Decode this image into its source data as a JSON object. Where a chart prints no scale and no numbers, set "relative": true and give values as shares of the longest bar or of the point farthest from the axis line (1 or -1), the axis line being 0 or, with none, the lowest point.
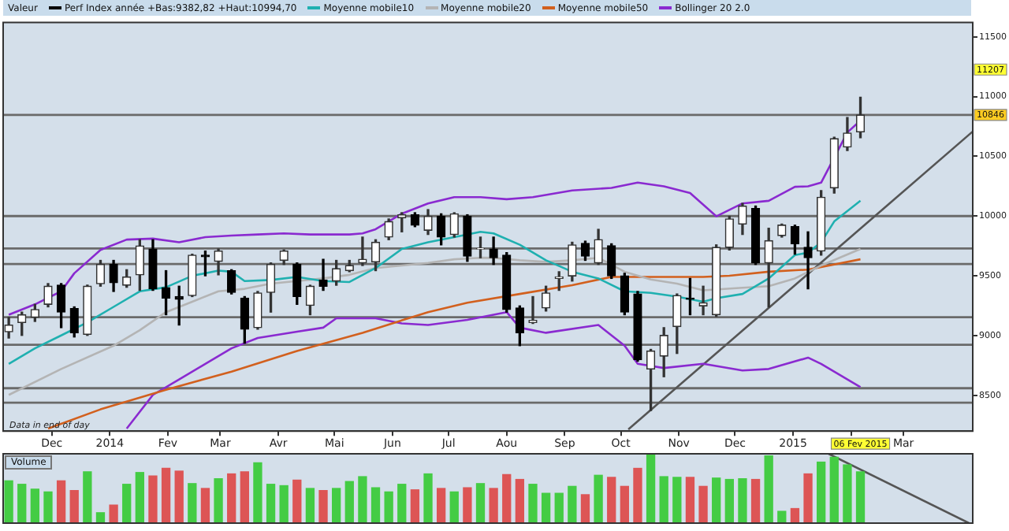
{
  "chart_data": [
    {
      "type": "candlestick",
      "legend_title": "Valeur",
      "legend": "top left",
      "marker": "none",
      "grid": false,
      "x": [
        "2013-11-08",
        "2013-11-15",
        "2013-11-22",
        "2013-11-29",
        "2013-12-06",
        "2013-12-13",
        "2013-12-20",
        "2013-12-27",
        "2014-01-03",
        "2014-01-10",
        "2014-01-17",
        "2014-01-24",
        "2014-01-31",
        "2014-02-07",
        "2014-02-14",
        "2014-02-21",
        "2014-02-28",
        "2014-03-07",
        "2014-03-14",
        "2014-03-21",
        "2014-03-28",
        "2014-04-04",
        "2014-04-11",
        "2014-04-18",
        "2014-04-25",
        "2014-05-02",
        "2014-05-09",
        "2014-05-16",
        "2014-05-23",
        "2014-05-30",
        "2014-06-06",
        "2014-06-13",
        "2014-06-20",
        "2014-06-27",
        "2014-07-04",
        "2014-07-11",
        "2014-07-18",
        "2014-07-25",
        "2014-08-01",
        "2014-08-08",
        "2014-08-15",
        "2014-08-22",
        "2014-08-29",
        "2014-09-05",
        "2014-09-12",
        "2014-09-19",
        "2014-09-26",
        "2014-10-03",
        "2014-10-10",
        "2014-10-17",
        "2014-10-24",
        "2014-10-31",
        "2014-11-07",
        "2014-11-14",
        "2014-11-21",
        "2014-11-28",
        "2014-12-05",
        "2014-12-12",
        "2014-12-19",
        "2014-12-26",
        "2015-01-02",
        "2015-01-09",
        "2015-01-16",
        "2015-01-23",
        "2015-01-30",
        "2015-02-06"
      ],
      "series": [
        {
          "name": "Perf Index année +Bas:9382,82 +Haut:10994,70",
          "color": "#000000",
          "colors": [
            "#333333",
            "#333333",
            "#333333",
            "#333333",
            "#000000",
            "#000000",
            "#333333",
            "#333333",
            "#000000",
            "#333333",
            "#333333",
            "#000000",
            "#000000",
            "#000000",
            "#333333",
            "#000000",
            "#333333",
            "#000000",
            "#000000",
            "#333333",
            "#333333",
            "#333333",
            "#000000",
            "#333333",
            "#000000",
            "#333333",
            "#333333",
            "#333333",
            "#333333",
            "#333333",
            "#333333",
            "#000000",
            "#333333",
            "#000000",
            "#333333",
            "#000000",
            "#333333",
            "#000000",
            "#000000",
            "#000000",
            "#333333",
            "#333333",
            "#333333",
            "#333333",
            "#000000",
            "#333333",
            "#000000",
            "#000000",
            "#000000",
            "#333333",
            "#333333",
            "#333333",
            "#000000",
            "#333333",
            "#333333",
            "#333333",
            "#333333",
            "#000000",
            "#333333",
            "#333333",
            "#000000",
            "#000000",
            "#333333",
            "#333333",
            "#333333",
            "#333333"
          ],
          "ohlc": [
            [
              9031,
              9152,
              8979,
              9088
            ],
            [
              9109,
              9196,
              9001,
              9174
            ],
            [
              9153,
              9261,
              9118,
              9218
            ],
            [
              9261,
              9435,
              9240,
              9413
            ],
            [
              9422,
              9435,
              9066,
              9196
            ],
            [
              9226,
              9240,
              8988,
              9023
            ],
            [
              9010,
              9422,
              9001,
              9413
            ],
            [
              9434,
              9629,
              9413,
              9595
            ],
            [
              9595,
              9629,
              9369,
              9443
            ],
            [
              9421,
              9551,
              9404,
              9491
            ],
            [
              9508,
              9802,
              9378,
              9750
            ],
            [
              9724,
              9802,
              9378,
              9391
            ],
            [
              9400,
              9543,
              9174,
              9313
            ],
            [
              9326,
              9413,
              9088,
              9304
            ],
            [
              9335,
              9681,
              9326,
              9673
            ],
            [
              9673,
              9707,
              9500,
              9660
            ],
            [
              9621,
              9724,
              9508,
              9707
            ],
            [
              9543,
              9551,
              9348,
              9361
            ],
            [
              9313,
              9326,
              8936,
              9053
            ],
            [
              9066,
              9369,
              9053,
              9356
            ],
            [
              9361,
              9608,
              9196,
              9595
            ],
            [
              9629,
              9716,
              9595,
              9707
            ],
            [
              9595,
              9608,
              9261,
              9326
            ],
            [
              9252,
              9421,
              9174,
              9413
            ],
            [
              9465,
              9638,
              9378,
              9413
            ],
            [
              9456,
              9629,
              9421,
              9560
            ],
            [
              9543,
              9629,
              9534,
              9586
            ],
            [
              9608,
              9824,
              9586,
              9638
            ],
            [
              9616,
              9802,
              9543,
              9781
            ],
            [
              9824,
              9976,
              9802,
              9954
            ],
            [
              9985,
              10028,
              9868,
              10011
            ],
            [
              10011,
              10028,
              9911,
              9924
            ],
            [
              9881,
              10054,
              9846,
              9998
            ],
            [
              9998,
              10019,
              9759,
              9824
            ],
            [
              9846,
              10028,
              9824,
              10019
            ],
            [
              9998,
              10011,
              9621,
              9664
            ],
            [
              9725,
              9824,
              9651,
              9729
            ],
            [
              9724,
              9824,
              9595,
              9651
            ],
            [
              9673,
              9694,
              9196,
              9218
            ],
            [
              9231,
              9248,
              8915,
              9023
            ],
            [
              9109,
              9326,
              9101,
              9127
            ],
            [
              9231,
              9413,
              9205,
              9356
            ],
            [
              9478,
              9534,
              9378,
              9491
            ],
            [
              9499,
              9781,
              9456,
              9759
            ],
            [
              9772,
              9790,
              9629,
              9664
            ],
            [
              9608,
              9889,
              9595,
              9803
            ],
            [
              9751,
              9768,
              9478,
              9500
            ],
            [
              9500,
              9521,
              9174,
              9196
            ],
            [
              9348,
              9369,
              8785,
              8798
            ],
            [
              8720,
              8884,
              8373,
              8871
            ],
            [
              8828,
              9066,
              8655,
              9001
            ],
            [
              9075,
              9348,
              8850,
              9335
            ],
            [
              9313,
              9478,
              9174,
              9304
            ],
            [
              9248,
              9413,
              9174,
              9274
            ],
            [
              9174,
              9759,
              9161,
              9738
            ],
            [
              9738,
              9998,
              9716,
              9976
            ],
            [
              9933,
              10106,
              9846,
              10084
            ],
            [
              10063,
              10084,
              9595,
              9608
            ],
            [
              9608,
              9898,
              9239,
              9794
            ],
            [
              9837,
              9933,
              9824,
              9924
            ],
            [
              9911,
              9924,
              9681,
              9768
            ],
            [
              9738,
              9868,
              9391,
              9651
            ],
            [
              9707,
              10214,
              9673,
              10158
            ],
            [
              10236,
              10660,
              10192,
              10648
            ],
            [
              10578,
              10825,
              10549,
              10695
            ],
            [
              10705,
              10994,
              10656,
              10846
            ]
          ]
        },
        {
          "type": "line",
          "name": "Moyenne mobile10",
          "color": "#1fb0b0",
          "x": [
            "2013-11-08",
            "2013-11-22",
            "2013-12-06",
            "2013-12-20",
            "2014-01-03",
            "2014-01-17",
            "2014-01-31",
            "2014-02-14",
            "2014-02-28",
            "2014-03-07",
            "2014-03-14",
            "2014-03-28",
            "2014-04-11",
            "2014-04-25",
            "2014-05-09",
            "2014-05-23",
            "2014-06-06",
            "2014-06-20",
            "2014-07-04",
            "2014-07-18",
            "2014-07-25",
            "2014-08-08",
            "2014-08-22",
            "2014-09-05",
            "2014-09-19",
            "2014-10-03",
            "2014-10-17",
            "2014-10-31",
            "2014-11-14",
            "2014-11-21",
            "2014-12-05",
            "2014-12-19",
            "2015-01-02",
            "2015-01-09",
            "2015-01-16",
            "2015-01-23",
            "2015-02-06"
          ],
          "values": [
            8763,
            8893,
            9001,
            9110,
            9240,
            9370,
            9404,
            9500,
            9543,
            9534,
            9456,
            9465,
            9491,
            9456,
            9448,
            9565,
            9725,
            9781,
            9824,
            9868,
            9855,
            9760,
            9630,
            9534,
            9478,
            9370,
            9357,
            9326,
            9283,
            9313,
            9348,
            9478,
            9673,
            9694,
            9781,
            9955,
            10128
          ]
        },
        {
          "type": "line",
          "name": "Moyenne mobile20",
          "color": "#b4b4b4",
          "x": [
            "2013-11-08",
            "2013-12-06",
            "2014-01-03",
            "2014-01-17",
            "2014-01-31",
            "2014-02-14",
            "2014-02-28",
            "2014-03-14",
            "2014-03-28",
            "2014-04-11",
            "2014-04-25",
            "2014-05-09",
            "2014-05-23",
            "2014-06-06",
            "2014-06-20",
            "2014-07-04",
            "2014-07-18",
            "2014-07-25",
            "2014-08-08",
            "2014-08-22",
            "2014-09-05",
            "2014-09-19",
            "2014-10-03",
            "2014-10-17",
            "2014-10-31",
            "2014-11-14",
            "2014-12-05",
            "2014-12-19",
            "2015-01-02",
            "2015-01-16",
            "2015-02-06"
          ],
          "values": [
            8503,
            8720,
            8915,
            9045,
            9196,
            9283,
            9370,
            9391,
            9435,
            9456,
            9478,
            9508,
            9565,
            9586,
            9608,
            9638,
            9651,
            9650,
            9630,
            9617,
            9630,
            9651,
            9534,
            9469,
            9435,
            9378,
            9400,
            9413,
            9478,
            9586,
            9725
          ]
        },
        {
          "type": "line",
          "name": "Moyenne mobile50",
          "color": "#d2601e",
          "x": [
            "2013-11-29",
            "2013-12-27",
            "2014-01-31",
            "2014-03-07",
            "2014-04-11",
            "2014-05-16",
            "2014-06-20",
            "2014-07-11",
            "2014-08-08",
            "2014-09-05",
            "2014-09-26",
            "2014-10-17",
            "2014-11-14",
            "2014-11-28",
            "2014-12-19",
            "2015-01-09",
            "2015-02-06"
          ],
          "values": [
            8221,
            8382,
            8546,
            8698,
            8871,
            9023,
            9196,
            9274,
            9348,
            9421,
            9491,
            9491,
            9491,
            9500,
            9534,
            9552,
            9638
          ]
        },
        {
          "type": "line",
          "name": "Bollinger 20 2.0",
          "color": "#8a2ad0",
          "x": [
            "2013-11-08",
            "2013-11-22",
            "2013-12-06",
            "2013-12-13",
            "2013-12-27",
            "2014-01-10",
            "2014-01-24",
            "2014-02-07",
            "2014-02-21",
            "2014-03-07",
            "2014-03-21",
            "2014-04-04",
            "2014-04-18",
            "2014-05-09",
            "2014-05-16",
            "2014-05-23",
            "2014-06-06",
            "2014-06-20",
            "2014-07-04",
            "2014-07-18",
            "2014-08-01",
            "2014-08-15",
            "2014-09-05",
            "2014-09-26",
            "2014-10-10",
            "2014-10-24",
            "2014-11-07",
            "2014-11-21",
            "2014-12-05",
            "2014-12-19",
            "2015-01-02",
            "2015-01-09",
            "2015-01-16",
            "2015-01-23",
            "2015-01-30",
            "2015-02-06"
          ],
          "values": [
            9174,
            9261,
            9370,
            9521,
            9716,
            9803,
            9811,
            9781,
            9824,
            9837,
            9846,
            9855,
            9846,
            9846,
            9855,
            9890,
            10020,
            10106,
            10158,
            10158,
            10141,
            10158,
            10214,
            10236,
            10280,
            10249,
            10193,
            9998,
            10106,
            10128,
            10245,
            10249,
            10280,
            null,
            10700,
            10800
          ]
        },
        {
          "type": "line",
          "color": "#8a2ad0",
          "x": [
            "2014-01-10",
            "2014-01-24",
            "2014-02-07",
            "2014-02-21",
            "2014-03-07",
            "2014-03-21",
            "2014-04-11",
            "2014-04-25",
            "2014-05-02",
            "2014-05-23",
            "2014-06-06",
            "2014-06-20",
            "2014-07-11",
            "2014-08-01",
            "2014-08-08",
            "2014-08-22",
            "2014-09-19",
            "2014-10-03",
            "2014-10-10",
            "2014-10-24",
            "2014-11-14",
            "2014-12-05",
            "2014-12-19",
            "2015-01-09",
            "2015-01-16",
            "2015-02-06"
          ],
          "values": [
            8221,
            8503,
            8633,
            8763,
            8893,
            8980,
            9032,
            9066,
            9144,
            9144,
            9101,
            9088,
            9131,
            9196,
            9066,
            9023,
            9088,
            8915,
            8763,
            8728,
            8763,
            8707,
            8720,
            8815,
            8763,
            8568
          ]
        },
        {
          "type": "line",
          "color": "#555555",
          "x": [
            "2014-10-05",
            "2015-04-07"
          ],
          "values": [
            8215,
            10708
          ]
        }
      ],
      "xlim": [
        "2013-11-05",
        "2015-04-07"
      ],
      "xticks": [
        {
          "value": "2013-12-01",
          "label": "Dec"
        },
        {
          "value": "2014-01-01",
          "label": "2014"
        },
        {
          "value": "2014-02-01",
          "label": "Fev"
        },
        {
          "value": "2014-03-01",
          "label": "Mar"
        },
        {
          "value": "2014-04-01",
          "label": "Avr"
        },
        {
          "value": "2014-05-01",
          "label": "Mai"
        },
        {
          "value": "2014-06-01",
          "label": "Jun"
        },
        {
          "value": "2014-07-01",
          "label": "Jul"
        },
        {
          "value": "2014-08-01",
          "label": "Aou"
        },
        {
          "value": "2014-09-01",
          "label": "Sep"
        },
        {
          "value": "2014-10-01",
          "label": "Oct"
        },
        {
          "value": "2014-11-01",
          "label": "Nov"
        },
        {
          "value": "2014-12-01",
          "label": "Dec"
        },
        {
          "value": "2015-01-01",
          "label": "2015"
        },
        {
          "value": "2015-02-01",
          "label": null
        },
        {
          "value": "2015-03-01",
          "label": "Mar"
        }
      ],
      "ylim": [
        8200,
        11620
      ],
      "yticks": [
        8500,
        9000,
        9500,
        10000,
        10500,
        11000,
        11500
      ],
      "ref_lines": [
        {
          "axis": "y",
          "value": 10846,
          "label": "10846",
          "color": "#6a6a6a"
        },
        {
          "axis": "y",
          "value": 10000,
          "color": "#6a6a6a"
        },
        {
          "axis": "y",
          "value": 9729,
          "color": "#6a6a6a"
        },
        {
          "axis": "y",
          "value": 9599,
          "color": "#6a6a6a"
        },
        {
          "axis": "y",
          "value": 9153,
          "color": "#6a6a6a"
        },
        {
          "axis": "y",
          "value": 8923,
          "color": "#6a6a6a"
        },
        {
          "axis": "y",
          "value": 8559,
          "color": "#6a6a6a"
        },
        {
          "axis": "y",
          "value": 8438,
          "color": "#6a6a6a"
        }
      ],
      "annotations": [
        "Data in end of day",
        "06 Fev 2015",
        "11207"
      ]
    },
    {
      "type": "bar",
      "title": "Volume",
      "relative": true,
      "grid": false,
      "marker": "none",
      "x": [
        "2013-11-08",
        "2013-11-15",
        "2013-11-22",
        "2013-11-29",
        "2013-12-06",
        "2013-12-13",
        "2013-12-20",
        "2013-12-27",
        "2014-01-03",
        "2014-01-10",
        "2014-01-17",
        "2014-01-24",
        "2014-01-31",
        "2014-02-07",
        "2014-02-14",
        "2014-02-21",
        "2014-02-28",
        "2014-03-07",
        "2014-03-14",
        "2014-03-21",
        "2014-03-28",
        "2014-04-04",
        "2014-04-11",
        "2014-04-18",
        "2014-04-25",
        "2014-05-02",
        "2014-05-09",
        "2014-05-16",
        "2014-05-23",
        "2014-05-30",
        "2014-06-06",
        "2014-06-13",
        "2014-06-20",
        "2014-06-27",
        "2014-07-04",
        "2014-07-11",
        "2014-07-18",
        "2014-07-25",
        "2014-08-01",
        "2014-08-08",
        "2014-08-15",
        "2014-08-22",
        "2014-08-29",
        "2014-09-05",
        "2014-09-12",
        "2014-09-19",
        "2014-09-26",
        "2014-10-03",
        "2014-10-10",
        "2014-10-17",
        "2014-10-24",
        "2014-10-31",
        "2014-11-07",
        "2014-11-14",
        "2014-11-21",
        "2014-11-28",
        "2014-12-05",
        "2014-12-12",
        "2014-12-19",
        "2014-12-26",
        "2015-01-02",
        "2015-01-09",
        "2015-01-16",
        "2015-01-23",
        "2015-01-30",
        "2015-02-06"
      ],
      "xlim": [
        "2013-11-05",
        "2015-04-07"
      ],
      "series": [
        {
          "values": [
            0.61,
            0.56,
            0.49,
            0.45,
            0.61,
            0.47,
            0.74,
            0.15,
            0.26,
            0.56,
            0.73,
            0.68,
            0.79,
            0.75,
            0.57,
            0.5,
            0.64,
            0.71,
            0.74,
            0.87,
            0.56,
            0.54,
            0.62,
            0.5,
            0.47,
            0.5,
            0.6,
            0.67,
            0.51,
            0.45,
            0.56,
            0.48,
            0.71,
            0.5,
            0.45,
            0.51,
            0.57,
            0.5,
            0.7,
            0.63,
            0.56,
            0.43,
            0.43,
            0.53,
            0.41,
            0.69,
            0.66,
            0.53,
            0.79,
            1,
            0.67,
            0.66,
            0.66,
            0.53,
            0.65,
            0.63,
            0.64,
            0.63,
            0.97,
            0.17,
            0.21,
            0.71,
            0.88,
            0.95,
            0.84,
            0.74
          ],
          "colors": [
            "#44cc44",
            "#44cc44",
            "#44cc44",
            "#44cc44",
            "#dd5555",
            "#dd5555",
            "#44cc44",
            "#44cc44",
            "#dd5555",
            "#44cc44",
            "#44cc44",
            "#dd5555",
            "#dd5555",
            "#dd5555",
            "#44cc44",
            "#dd5555",
            "#44cc44",
            "#dd5555",
            "#dd5555",
            "#44cc44",
            "#44cc44",
            "#44cc44",
            "#dd5555",
            "#44cc44",
            "#dd5555",
            "#44cc44",
            "#44cc44",
            "#44cc44",
            "#44cc44",
            "#44cc44",
            "#44cc44",
            "#dd5555",
            "#44cc44",
            "#dd5555",
            "#44cc44",
            "#dd5555",
            "#44cc44",
            "#dd5555",
            "#dd5555",
            "#dd5555",
            "#44cc44",
            "#44cc44",
            "#44cc44",
            "#44cc44",
            "#dd5555",
            "#44cc44",
            "#dd5555",
            "#dd5555",
            "#dd5555",
            "#44cc44",
            "#44cc44",
            "#44cc44",
            "#dd5555",
            "#dd5555",
            "#44cc44",
            "#44cc44",
            "#44cc44",
            "#dd5555",
            "#44cc44",
            "#44cc44",
            "#dd5555",
            "#dd5555",
            "#44cc44",
            "#44cc44",
            "#44cc44",
            "#44cc44"
          ]
        },
        {
          "type": "line",
          "color": "#555555",
          "x": [
            "2015-01-20",
            "2015-04-05"
          ],
          "values": [
            1,
            0
          ]
        }
      ]
    }
  ]
}
